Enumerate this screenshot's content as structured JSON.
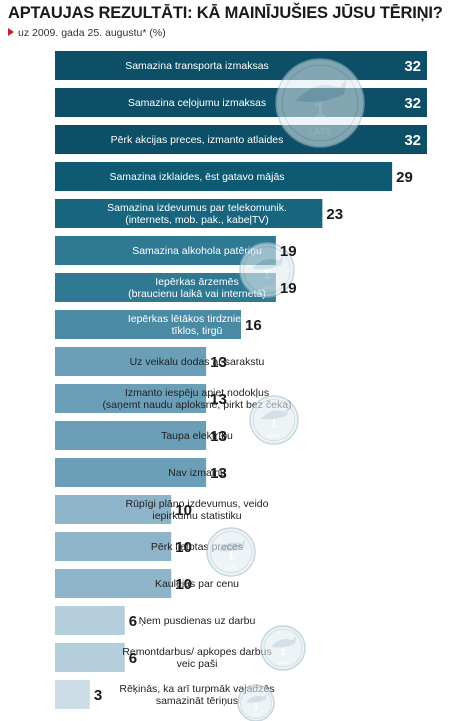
{
  "chart_data": {
    "type": "bar",
    "orientation": "horizontal",
    "title": "APTAUJAS REZULTĀTI: KĀ MAINĪJUŠIES JŪSU TĒRIŅI?",
    "subtitle": "uz 2009. gada 25. augustu* (%)",
    "xlim": [
      0,
      32
    ],
    "grid": false,
    "legend": "none",
    "categories": [
      [
        "Samazina transporta izmaksas"
      ],
      [
        "Samazina ceļojumu izmaksas"
      ],
      [
        "Pērk akcijas preces, izmanto atlaides"
      ],
      [
        "Samazina izklaides, ēst gatavo mājās"
      ],
      [
        "Samazina izdevumus par telekomunik.",
        "(internets, mob. pak., kabeļTV)"
      ],
      [
        "Samazina alkohola patēriņu"
      ],
      [
        "Iepērkas ārzemēs",
        "(braucienu laikā vai internetā)"
      ],
      [
        "Iepērkas lētākos tirdzniecības",
        "tīklos, tirgū"
      ],
      [
        "Uz veikalu dodas ar sarakstu"
      ],
      [
        "Izmanto iespēju apiet nodokļus",
        "(saņemt naudu aploksnē, pirkt bez čeka)"
      ],
      [
        "Taupa elektrību"
      ],
      [
        "Nav izmaiņu"
      ],
      [
        "Rūpīgi plāno izdevumus, veido",
        "iepirkumu statistiku"
      ],
      [
        "Pērk lietotas preces"
      ],
      [
        "Kaulējas par cenu"
      ],
      [
        "Ņem pusdienas uz darbu"
      ],
      [
        "Remontdarbus/ apkopes darbus",
        "veic paši"
      ],
      [
        "Rēķinās, ka arī turpmāk vajadzēs",
        "samazināt tēriņus"
      ]
    ],
    "values": [
      32,
      32,
      32,
      29,
      23,
      19,
      19,
      16,
      13,
      13,
      13,
      13,
      10,
      10,
      10,
      6,
      6,
      3
    ],
    "colors": [
      "#0d4f66",
      "#0d4f66",
      "#0d4f66",
      "#0f5a73",
      "#17657e",
      "#2f7993",
      "#2f7993",
      "#4a8aa4",
      "#6b9fb8",
      "#6b9fb8",
      "#6b9fb8",
      "#6b9fb8",
      "#8db4c9",
      "#8db4c9",
      "#8db4c9",
      "#b5cedb",
      "#b5cedb",
      "#cddde6"
    ]
  },
  "coin": {
    "value": "1",
    "text": "LATS"
  }
}
